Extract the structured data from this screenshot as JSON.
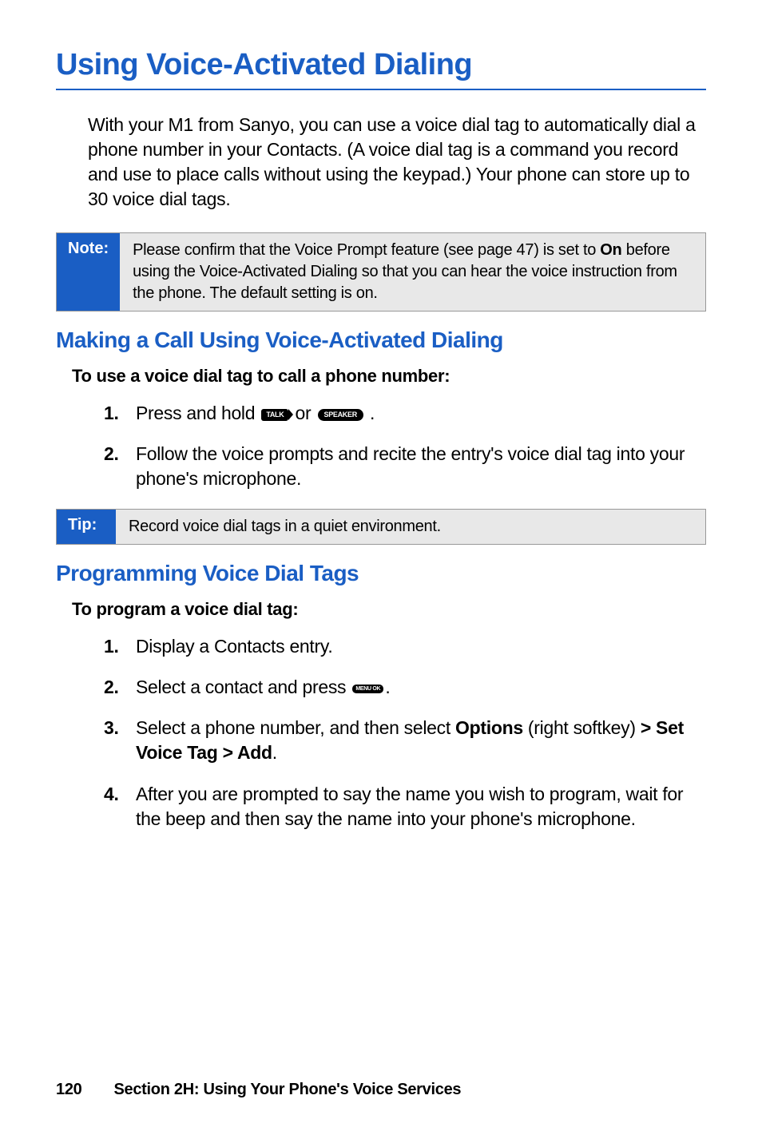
{
  "title": "Using Voice-Activated Dialing",
  "intro": "With your M1 from Sanyo, you can use a voice dial tag to automatically dial a phone number in your Contacts. (A voice dial tag is a command you record and use to place calls without using the keypad.) Your phone can store up to 30 voice dial tags.",
  "note": {
    "label": "Note:",
    "pre": "Please confirm that the Voice Prompt feature (see page 47) is set to ",
    "bold": "On",
    "post": " before using the Voice-Activated Dialing so that you can hear the voice instruction from the phone. The default setting is on."
  },
  "section1": {
    "heading": "Making a Call Using Voice-Activated Dialing",
    "sub": "To use a voice dial tag to call a phone number:",
    "step1_num": "1.",
    "step1_pre": "Press and hold ",
    "step1_or": " or ",
    "step1_post": " .",
    "step2_num": "2.",
    "step2": "Follow the voice prompts and recite the entry's voice dial tag into your phone's microphone."
  },
  "tip": {
    "label": "Tip:",
    "content": "Record voice dial tags in a quiet environment."
  },
  "section2": {
    "heading": "Programming Voice Dial Tags",
    "sub": "To program a voice dial tag:",
    "step1_num": "1.",
    "step1": "Display a Contacts entry.",
    "step2_num": "2.",
    "step2_pre": "Select a contact and press ",
    "step2_post": ".",
    "step3_num": "3.",
    "step3_pre": "Select a phone number, and then select ",
    "step3_b1": "Options",
    "step3_mid": " (right softkey) ",
    "step3_b2": "> Set Voice Tag > Add",
    "step3_post": ".",
    "step4_num": "4.",
    "step4": "After you are prompted to say the name you wish to program, wait for the beep and then say the name into your phone's microphone."
  },
  "icons": {
    "talk": "TALK",
    "speaker": "SPEAKER",
    "menu": "MENU\nOK"
  },
  "footer": {
    "page": "120",
    "section": "Section 2H: Using Your Phone's Voice Services"
  },
  "colors": {
    "accent": "#1a5ec4",
    "callout_bg": "#e8e8e8",
    "text": "#000000",
    "bg": "#ffffff"
  },
  "typography": {
    "title_size": 38,
    "heading_size": 28,
    "body_size": 23,
    "sub_size": 22,
    "footer_size": 20,
    "callout_size": 20
  }
}
